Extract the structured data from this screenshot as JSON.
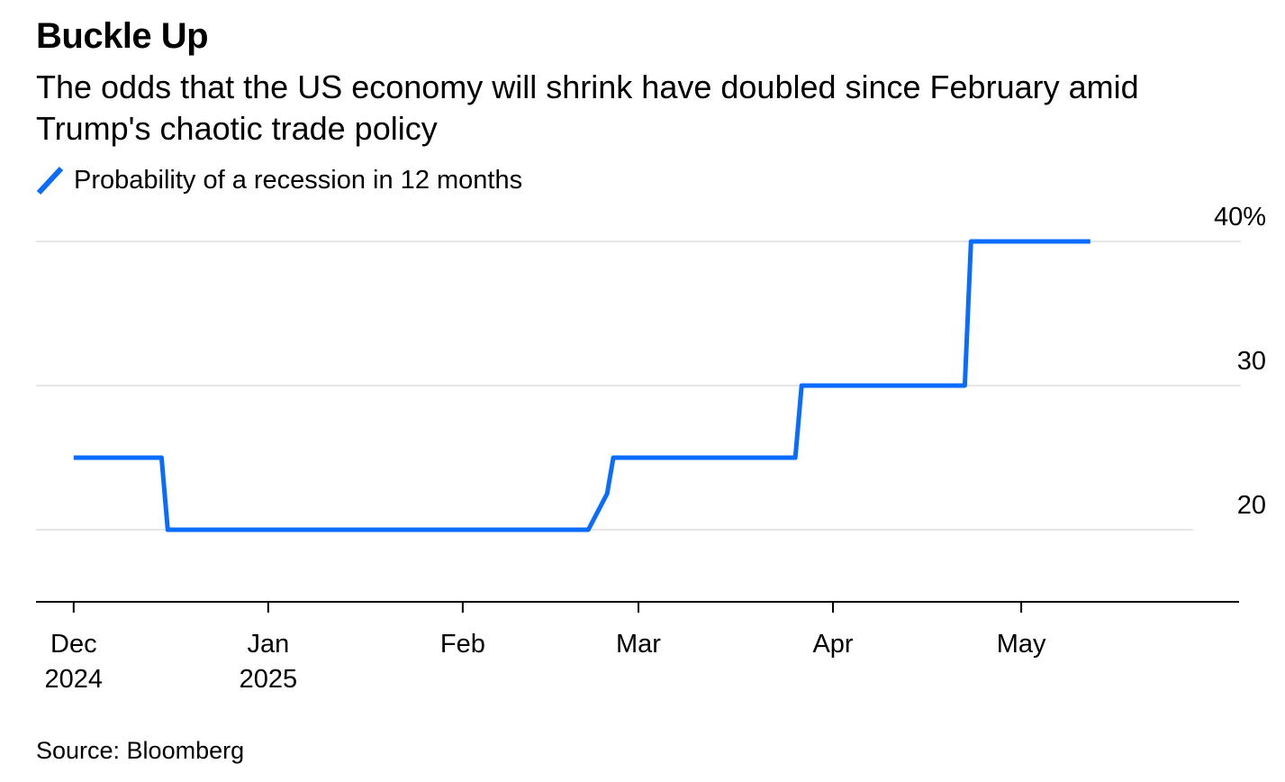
{
  "header": {
    "title": "Buckle Up",
    "subtitle": "The odds that the US economy will shrink have doubled since February amid Trump's chaotic trade policy"
  },
  "footer": {
    "source": "Source: Bloomberg"
  },
  "colors": {
    "line": "#0a6cff",
    "grid": "#e6e6e6",
    "axis": "#000000"
  },
  "chart_data": {
    "type": "line",
    "series": [
      {
        "name": "Probability of a recession in 12 months",
        "x": [
          "2024-12-01",
          "2024-12-15",
          "2024-12-16",
          "2025-02-21",
          "2025-02-24",
          "2025-02-25",
          "2025-03-26",
          "2025-03-27",
          "2025-04-22",
          "2025-04-23",
          "2025-05-12"
        ],
        "y": [
          25,
          25,
          20,
          20,
          22.5,
          25,
          25,
          30,
          30,
          40,
          40
        ]
      }
    ],
    "y_ticks": [
      {
        "value": 40,
        "label": "40%"
      },
      {
        "value": 30,
        "label": "30"
      },
      {
        "value": 20,
        "label": "20"
      }
    ],
    "x_ticks": [
      {
        "date": "2024-12-01",
        "label": "Dec",
        "sublabel": "2024"
      },
      {
        "date": "2025-01-01",
        "label": "Jan",
        "sublabel": "2025"
      },
      {
        "date": "2025-02-01",
        "label": "Feb",
        "sublabel": ""
      },
      {
        "date": "2025-03-01",
        "label": "Mar",
        "sublabel": ""
      },
      {
        "date": "2025-04-01",
        "label": "Apr",
        "sublabel": ""
      },
      {
        "date": "2025-05-01",
        "label": "May",
        "sublabel": ""
      }
    ],
    "xlim": [
      "2024-11-25",
      "2025-06-05"
    ],
    "ylim": [
      15,
      40
    ],
    "y_axis_side": "right",
    "grid": true,
    "legend_position": "top-left"
  }
}
